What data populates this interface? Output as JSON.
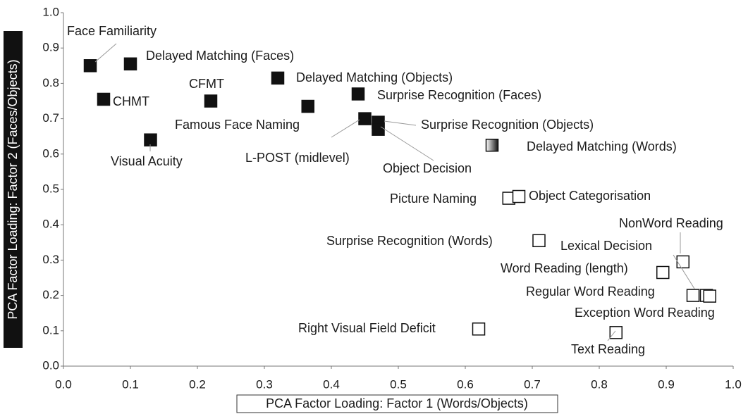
{
  "chart_data": {
    "type": "scatter",
    "xlabel": "PCA Factor Loading: Factor 1 (Words/Objects)",
    "ylabel": "PCA Factor Loading: Factor 2 (Faces/Objects)",
    "xlim": [
      0,
      1
    ],
    "ylim": [
      0,
      1
    ],
    "xticks": [
      {
        "value": 0,
        "label": "0.0"
      },
      0.1,
      0.2,
      0.3,
      0.4,
      0.5,
      0.6,
      0.7,
      0.8,
      0.9,
      {
        "value": 1,
        "label": "1.0"
      }
    ],
    "yticks": [
      {
        "value": 0,
        "label": "0.0"
      },
      0.1,
      0.2,
      0.3,
      0.4,
      0.5,
      0.6,
      0.7,
      0.8,
      0.9,
      {
        "value": 1,
        "label": "1.0"
      }
    ],
    "labels": [
      "Face Familiarity",
      "Delayed Matching (Faces)",
      "CHMT",
      "Visual Acuity",
      "CFMT",
      "Delayed Matching (Objects)",
      "Famous Face Naming",
      "Surprise Recognition (Faces)",
      "L-POST (midlevel)",
      "Surprise Recognition (Objects)",
      "Object Decision",
      "Delayed Matching (Words)",
      "Picture Naming",
      "Object Categorisation",
      "Surprise Recognition (Words)",
      "NonWord Reading",
      "Lexical Decision",
      "Word Reading (length)",
      "Regular Word Reading",
      "Exception Word Reading",
      "Right Visual Field Deficit",
      "Text Reading"
    ],
    "x": [
      0.04,
      0.1,
      0.06,
      0.13,
      0.22,
      0.32,
      0.365,
      0.44,
      0.45,
      0.47,
      0.47,
      0.64,
      0.665,
      0.68,
      0.71,
      0.925,
      0.96,
      0.895,
      0.94,
      0.965,
      0.62,
      0.825
    ],
    "values": [
      0.85,
      0.855,
      0.755,
      0.64,
      0.75,
      0.815,
      0.735,
      0.77,
      0.7,
      0.69,
      0.67,
      0.625,
      0.475,
      0.48,
      0.355,
      0.295,
      0.2,
      0.265,
      0.2,
      0.198,
      0.105,
      0.095
    ],
    "colors": [
      "#111111",
      "#111111",
      "#111111",
      "#111111",
      "#111111",
      "#111111",
      "#111111",
      "#111111",
      "#111111",
      "#111111",
      "#111111",
      "gradient",
      "#ffffff",
      "#ffffff",
      "#ffffff",
      "#ffffff",
      "#ffffff",
      "#ffffff",
      "#ffffff",
      "#ffffff",
      "#ffffff",
      "#ffffff"
    ]
  }
}
